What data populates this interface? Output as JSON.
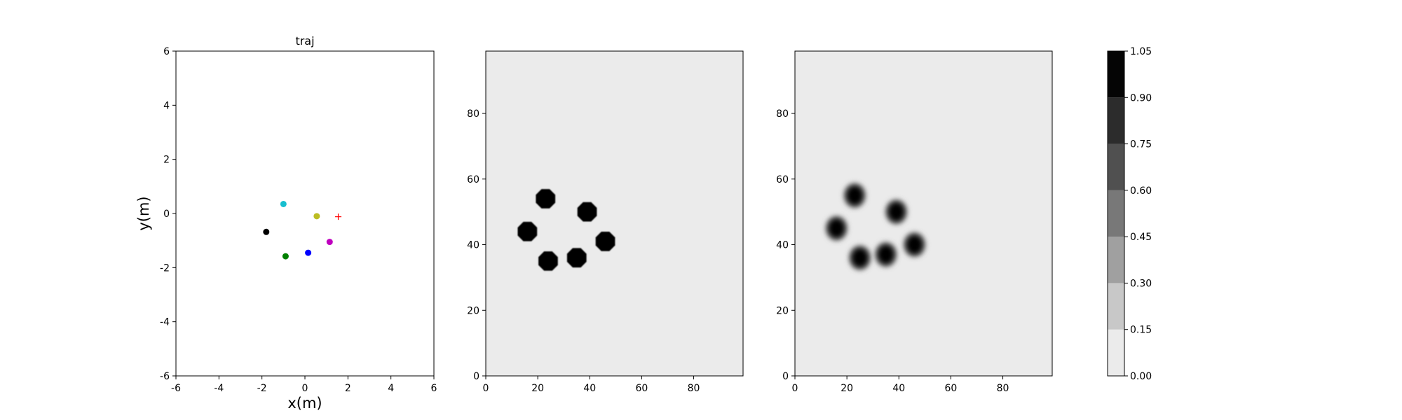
{
  "chart_data": [
    {
      "type": "scatter",
      "title": "traj",
      "xlabel": "x(m)",
      "ylabel": "y(m)",
      "xlim": [
        -6,
        6
      ],
      "ylim": [
        -6,
        6
      ],
      "xticks": [
        -6,
        -4,
        -2,
        0,
        2,
        4,
        6
      ],
      "yticks": [
        -6,
        -4,
        -2,
        0,
        2,
        4,
        6
      ],
      "grid": false,
      "points": [
        {
          "x": -1.0,
          "y": 0.35,
          "color": "#17becf",
          "marker": "circle"
        },
        {
          "x": 0.55,
          "y": -0.1,
          "color": "#bcbd22",
          "marker": "circle"
        },
        {
          "x": -1.8,
          "y": -0.68,
          "color": "#000000",
          "marker": "circle"
        },
        {
          "x": 1.15,
          "y": -1.05,
          "color": "#bf00bf",
          "marker": "circle"
        },
        {
          "x": 0.15,
          "y": -1.45,
          "color": "#0000ff",
          "marker": "circle"
        },
        {
          "x": -0.9,
          "y": -1.58,
          "color": "#008000",
          "marker": "circle"
        },
        {
          "x": 1.55,
          "y": -0.12,
          "color": "#ff0000",
          "marker": "plus"
        }
      ]
    },
    {
      "type": "heatmap",
      "xlim": [
        0,
        99
      ],
      "ylim": [
        0,
        99
      ],
      "xticks": [
        0,
        20,
        40,
        60,
        80
      ],
      "yticks": [
        0,
        20,
        40,
        60,
        80
      ],
      "background_value": 0.05,
      "edge": "sharp",
      "blobs": [
        {
          "x": 23,
          "y": 54,
          "value": 1.0
        },
        {
          "x": 39,
          "y": 50,
          "value": 1.0
        },
        {
          "x": 16,
          "y": 44,
          "value": 1.0
        },
        {
          "x": 46,
          "y": 41,
          "value": 1.0
        },
        {
          "x": 35,
          "y": 36,
          "value": 1.0
        },
        {
          "x": 24,
          "y": 35,
          "value": 1.0
        }
      ]
    },
    {
      "type": "heatmap",
      "xlim": [
        0,
        99
      ],
      "ylim": [
        0,
        99
      ],
      "xticks": [
        0,
        20,
        40,
        60,
        80
      ],
      "yticks": [
        0,
        20,
        40,
        60,
        80
      ],
      "background_value": 0.05,
      "edge": "soft",
      "blobs": [
        {
          "x": 23,
          "y": 55,
          "value": 1.0
        },
        {
          "x": 39,
          "y": 50,
          "value": 1.0
        },
        {
          "x": 16,
          "y": 45,
          "value": 1.0
        },
        {
          "x": 46,
          "y": 40,
          "value": 1.0
        },
        {
          "x": 35,
          "y": 37,
          "value": 1.0
        },
        {
          "x": 25,
          "y": 36,
          "value": 1.0
        }
      ]
    }
  ],
  "colorbar": {
    "levels": [
      "0.00",
      "0.15",
      "0.30",
      "0.45",
      "0.60",
      "0.75",
      "0.90",
      "1.05"
    ],
    "colors": [
      "#ebebeb",
      "#c8c8c8",
      "#a0a0a0",
      "#787878",
      "#505050",
      "#2c2c2c",
      "#050505"
    ]
  }
}
